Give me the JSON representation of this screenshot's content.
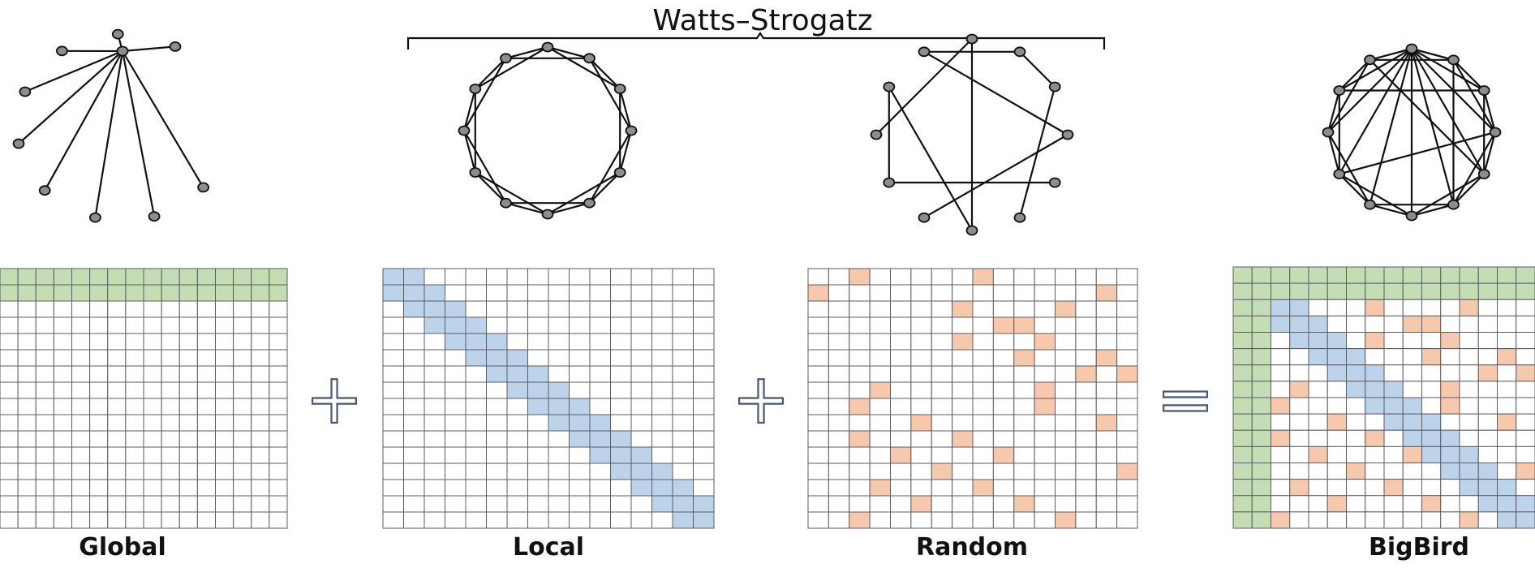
{
  "title": "Watts–Strogatz",
  "labels": {
    "global": "Global",
    "local": "Local",
    "random": "Random",
    "bigbird": "BigBird"
  },
  "operators": {
    "plus1": "+",
    "plus2": "+",
    "equals": "="
  },
  "colors": {
    "global": "#c4ddb5",
    "local": "#bcd3ea",
    "random": "#f6c9af",
    "empty": "#ffffff",
    "grid_line": "#5c5c66",
    "node_fill": "#8d8d8d",
    "edge": "#111111"
  },
  "matrices": {
    "size": 16,
    "global": {
      "rows": [
        0,
        1
      ],
      "cols": [
        0,
        1
      ]
    },
    "local": {
      "bandwidth": 1
    },
    "random": {
      "cells": [
        [
          0,
          2
        ],
        [
          0,
          8
        ],
        [
          1,
          0
        ],
        [
          1,
          14
        ],
        [
          2,
          7
        ],
        [
          2,
          12
        ],
        [
          3,
          9
        ],
        [
          3,
          10
        ],
        [
          4,
          7
        ],
        [
          4,
          11
        ],
        [
          5,
          10
        ],
        [
          5,
          14
        ],
        [
          6,
          13
        ],
        [
          6,
          15
        ],
        [
          7,
          3
        ],
        [
          7,
          11
        ],
        [
          8,
          2
        ],
        [
          8,
          11
        ],
        [
          9,
          5
        ],
        [
          9,
          14
        ],
        [
          10,
          2
        ],
        [
          10,
          7
        ],
        [
          11,
          4
        ],
        [
          11,
          9
        ],
        [
          12,
          6
        ],
        [
          12,
          15
        ],
        [
          13,
          3
        ],
        [
          13,
          8
        ],
        [
          14,
          5
        ],
        [
          14,
          10
        ],
        [
          15,
          2
        ],
        [
          15,
          12
        ]
      ]
    }
  },
  "graphs": {
    "global": {
      "hub": 0,
      "nodes": 10,
      "edges": [
        [
          0,
          1
        ],
        [
          0,
          2
        ],
        [
          0,
          3
        ],
        [
          0,
          4
        ],
        [
          0,
          5
        ],
        [
          0,
          6
        ],
        [
          0,
          7
        ],
        [
          0,
          8
        ],
        [
          0,
          9
        ]
      ]
    },
    "local": {
      "nodes": 12,
      "edges": [
        [
          0,
          1
        ],
        [
          1,
          2
        ],
        [
          2,
          3
        ],
        [
          3,
          4
        ],
        [
          4,
          5
        ],
        [
          5,
          6
        ],
        [
          6,
          7
        ],
        [
          7,
          8
        ],
        [
          8,
          9
        ],
        [
          9,
          10
        ],
        [
          10,
          11
        ],
        [
          11,
          0
        ],
        [
          0,
          2
        ],
        [
          1,
          3
        ],
        [
          2,
          4
        ],
        [
          3,
          5
        ],
        [
          4,
          6
        ],
        [
          5,
          7
        ],
        [
          6,
          8
        ],
        [
          7,
          9
        ],
        [
          8,
          10
        ],
        [
          9,
          11
        ],
        [
          10,
          0
        ],
        [
          11,
          1
        ]
      ]
    },
    "random": {
      "nodes": 12,
      "edges": [
        [
          0,
          6
        ],
        [
          0,
          9
        ],
        [
          1,
          2
        ],
        [
          2,
          5
        ],
        [
          3,
          7
        ],
        [
          4,
          8
        ],
        [
          6,
          10
        ],
        [
          11,
          3
        ],
        [
          8,
          10
        ],
        [
          1,
          11
        ]
      ]
    },
    "bigbird": {
      "nodes": 12,
      "edges": [
        [
          0,
          1
        ],
        [
          1,
          2
        ],
        [
          2,
          3
        ],
        [
          3,
          4
        ],
        [
          4,
          5
        ],
        [
          5,
          6
        ],
        [
          6,
          7
        ],
        [
          7,
          8
        ],
        [
          8,
          9
        ],
        [
          9,
          10
        ],
        [
          10,
          11
        ],
        [
          11,
          0
        ],
        [
          0,
          2
        ],
        [
          1,
          3
        ],
        [
          2,
          4
        ],
        [
          3,
          5
        ],
        [
          4,
          6
        ],
        [
          5,
          7
        ],
        [
          6,
          8
        ],
        [
          7,
          9
        ],
        [
          8,
          10
        ],
        [
          9,
          11
        ],
        [
          10,
          0
        ],
        [
          11,
          1
        ],
        [
          0,
          3
        ],
        [
          0,
          4
        ],
        [
          0,
          5
        ],
        [
          0,
          6
        ],
        [
          0,
          7
        ],
        [
          0,
          8
        ],
        [
          0,
          9
        ],
        [
          2,
          10
        ],
        [
          3,
          8
        ],
        [
          4,
          11
        ],
        [
          1,
          5
        ]
      ]
    }
  }
}
